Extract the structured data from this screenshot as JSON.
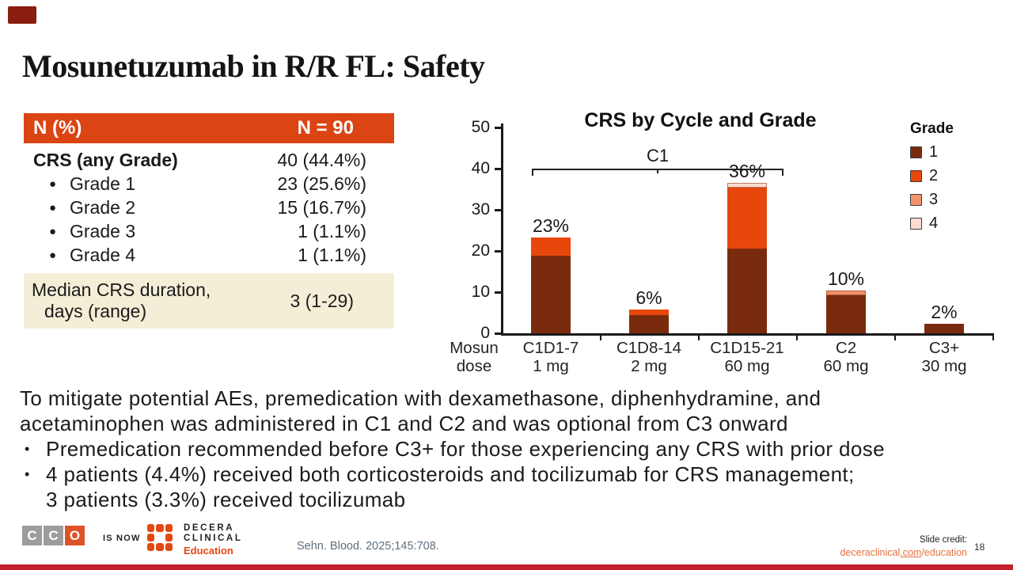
{
  "slide": {
    "title": "Mosunetuzumab in R/R FL: Safety",
    "page_number": "18"
  },
  "colors": {
    "table_header_bg": "#db4413",
    "cream_row_bg": "#f5eed7",
    "grade1": "#7b2b0d",
    "grade2": "#e8470b",
    "grade3": "#f2936b",
    "grade4": "#fbddd0",
    "brand_orange": "#e2480f",
    "cco_gray": "#9d9d9d",
    "cco_orange": "#de5227",
    "link_orange": "#e4713d",
    "bottom_bar": "#c2202a",
    "corner_accent": "#8a1c10"
  },
  "table": {
    "header": {
      "label": "N (%)",
      "value": "N = 90"
    },
    "rows": [
      {
        "label": "CRS (any Grade)",
        "value": "40 (44.4%)"
      },
      {
        "label": "Grade 1",
        "value": "23 (25.6%)"
      },
      {
        "label": "Grade 2",
        "value": "15 (16.7%)"
      },
      {
        "label": "Grade 3",
        "value": "1 (1.1%)"
      },
      {
        "label": "Grade 4",
        "value": "1 (1.1%)"
      }
    ],
    "footer_row": {
      "label_line1": "Median CRS duration,",
      "label_line2": "days (range)",
      "value": "3 (1-29)"
    }
  },
  "chart_data": {
    "type": "bar",
    "stacked": true,
    "title": "CRS by Cycle and Grade",
    "legend_title": "Grade",
    "legend_position": "top-right",
    "grid": false,
    "ylim": [
      0,
      50
    ],
    "yticks": [
      0,
      10,
      20,
      30,
      40,
      50
    ],
    "x_axis_prefix": [
      "Mosun",
      "dose"
    ],
    "categories": [
      [
        "C1D1-7",
        "1 mg"
      ],
      [
        "C1D8-14",
        "2 mg"
      ],
      [
        "C1D15-21",
        "60 mg"
      ],
      [
        "C2",
        "60 mg"
      ],
      [
        "C3+",
        "30 mg"
      ]
    ],
    "series": [
      {
        "name": "1",
        "color": "#7b2b0d",
        "values": [
          18.9,
          4.5,
          20.5,
          9.2,
          2.4
        ]
      },
      {
        "name": "2",
        "color": "#e8470b",
        "values": [
          4.4,
          1.2,
          14.8,
          0,
          0
        ]
      },
      {
        "name": "3",
        "color": "#f2936b",
        "values": [
          0,
          0,
          0,
          1.2,
          0
        ]
      },
      {
        "name": "4",
        "color": "#fbddd0",
        "values": [
          0,
          0,
          1.2,
          0,
          0
        ]
      }
    ],
    "totals": [
      "23%",
      "6%",
      "36%",
      "10%",
      "2%"
    ],
    "bracket": {
      "label": "C1",
      "from": 0,
      "to": 2,
      "at_value": 40
    }
  },
  "notes": {
    "para_lines": [
      "To mitigate potential AEs, premedication with dexamethasone, diphenhydramine, and",
      "acetaminophen was administered in C1 and C2 and was optional from C3 onward"
    ],
    "bullets": [
      {
        "lines": [
          "Premedication recommended before C3+ for those experiencing any CRS with prior dose"
        ]
      },
      {
        "lines": [
          "4 patients (4.4%) received both corticosteroids and tocilizumab for CRS management;",
          "3 patients (3.3%) received tocilizumab"
        ]
      }
    ]
  },
  "footer": {
    "cco_letters": [
      "C",
      "C",
      "O"
    ],
    "is_now": "IS NOW",
    "brand_line1": "DECERA",
    "brand_line2": "CLINICAL",
    "brand_sub": "Education",
    "reference": "Sehn. Blood. 2025;145:708.",
    "credit_label": "Slide credit:",
    "credit_link": {
      "part1": "deceraclinical",
      "part2": ".com",
      "part3": "/education"
    }
  }
}
